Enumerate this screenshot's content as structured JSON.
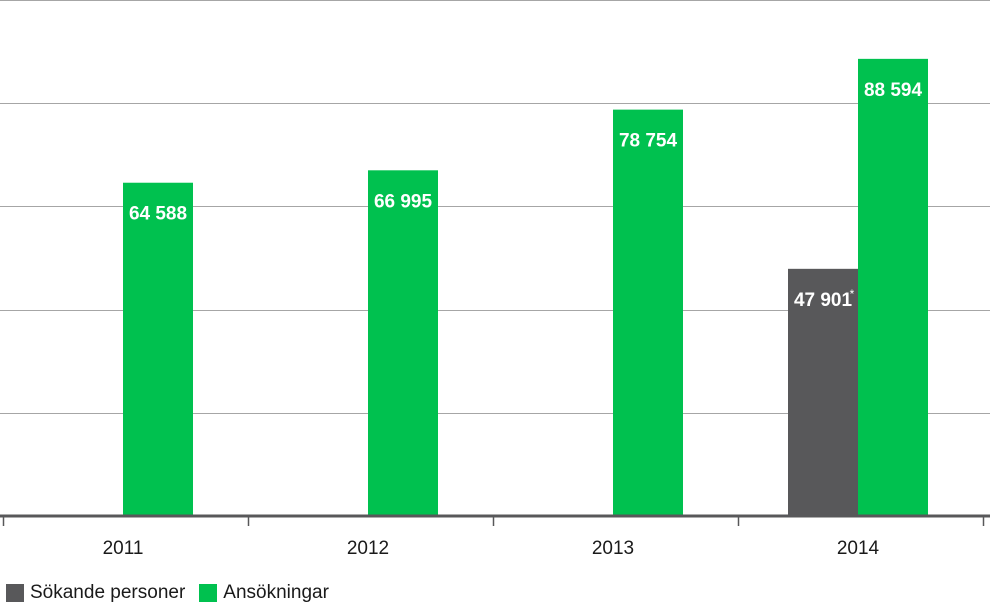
{
  "chart_data": {
    "type": "bar",
    "categories": [
      "2011",
      "2012",
      "2013",
      "2014"
    ],
    "series": [
      {
        "name": "Sökande personer",
        "color": "#58585a",
        "values": [
          null,
          null,
          null,
          47901
        ],
        "labels": [
          "",
          "",
          "",
          "47 901"
        ],
        "footnote_marks": [
          "",
          "",
          "",
          "*"
        ]
      },
      {
        "name": "Ansökningar",
        "color": "#00c14f",
        "values": [
          64588,
          66995,
          78754,
          88594
        ],
        "labels": [
          "64 588",
          "66 995",
          "78 754",
          "88 594"
        ],
        "footnote_marks": [
          "",
          "",
          "",
          ""
        ]
      }
    ],
    "ylim": [
      0,
      100000
    ],
    "grid": true,
    "legend_position": "bottom-left"
  }
}
